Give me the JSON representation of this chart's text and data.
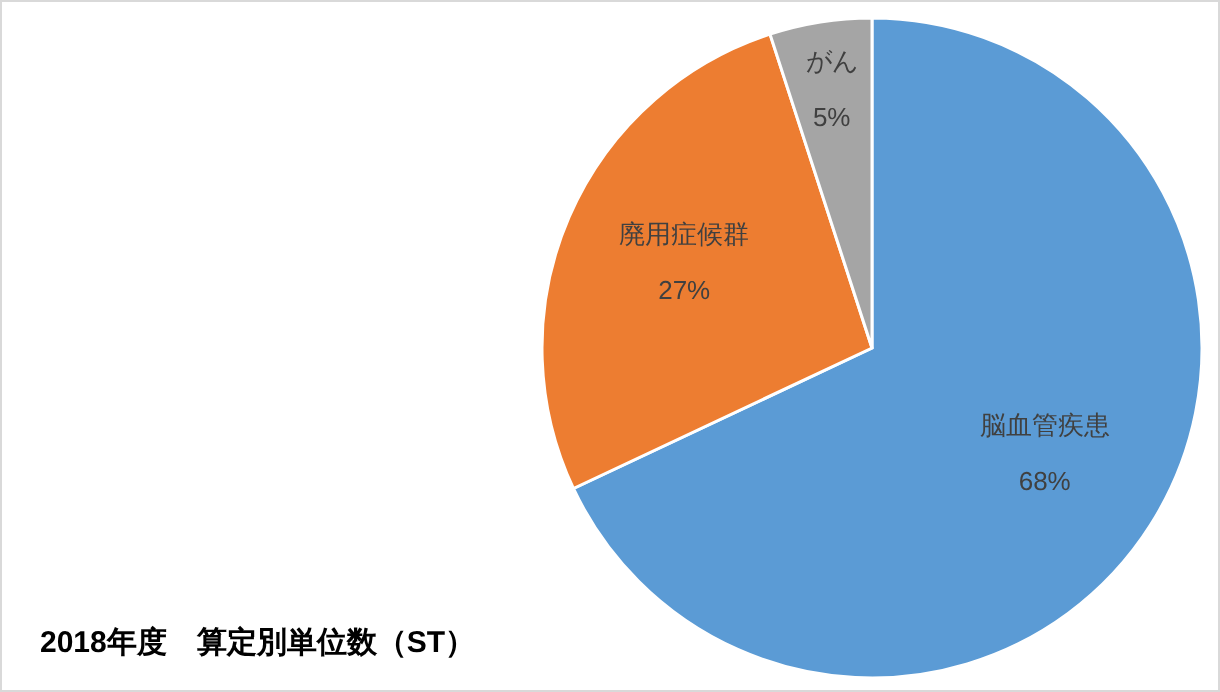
{
  "chart_data": {
    "type": "pie",
    "title": "2018年度　算定別単位数（ST）",
    "categories": [
      "脳血管疾患",
      "廃用症候群",
      "がん"
    ],
    "values": [
      68,
      27,
      5
    ],
    "colors": [
      "#5b9bd5",
      "#ed7d31",
      "#a5a5a5"
    ],
    "value_labels": [
      "68%",
      "27%",
      "5%"
    ]
  }
}
